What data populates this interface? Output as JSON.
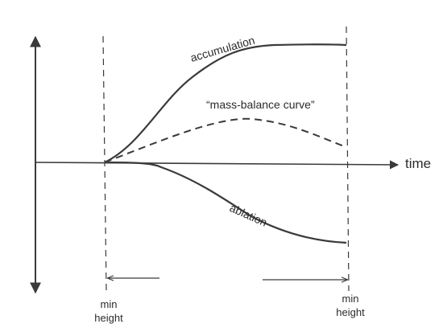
{
  "axes": {
    "x_label": "time"
  },
  "curves": {
    "accumulation": {
      "label": "accumulation",
      "line_style": "solid"
    },
    "mass_balance": {
      "label": "“mass-balance curve”",
      "line_style": "dashed"
    },
    "ablation": {
      "label": "ablation",
      "line_style": "solid"
    }
  },
  "markers": {
    "start": {
      "line1": "min",
      "line2": "height"
    },
    "end": {
      "line1": "min",
      "line2": "height"
    }
  },
  "colors": {
    "ink": "#3a3a3a",
    "background": "#ffffff"
  }
}
